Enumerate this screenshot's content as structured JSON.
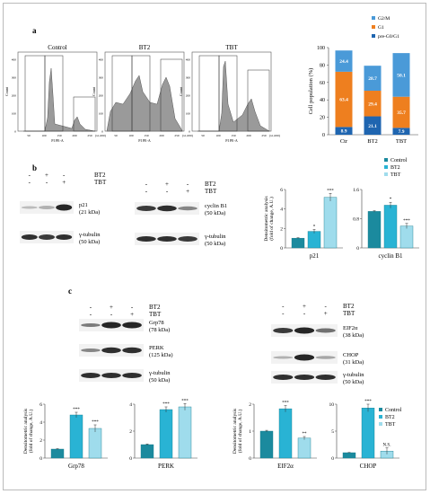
{
  "panels": {
    "a": {
      "label": "a",
      "flow": {
        "ylabel": "Count",
        "xlabel": "PI PE-A",
        "xunit": "(x1,000)",
        "xticks": [
          "50",
          "100",
          "150",
          "200",
          "250"
        ],
        "yticks": [
          "0",
          "100",
          "200",
          "300",
          "400"
        ],
        "plots": [
          {
            "title": "Control"
          },
          {
            "title": "BT2"
          },
          {
            "title": "TBT"
          }
        ]
      },
      "legend": [
        "G2/M",
        "G1",
        "pre-G0/G1"
      ],
      "colors": {
        "g2m": "#4a9ad8",
        "g1": "#ee7f1f",
        "preg": "#1f65b0"
      }
    },
    "b": {
      "label": "b",
      "treat_labels": [
        "BT2",
        "TBT"
      ],
      "blot1_signs": [
        [
          "-",
          "+",
          "-"
        ],
        [
          "-",
          "-",
          "+"
        ]
      ],
      "blot2_signs": [
        [
          "-",
          "+",
          "-"
        ],
        [
          "-",
          "-",
          "+"
        ]
      ],
      "blot1_bands": [
        {
          "name": "p21",
          "size": "(21 kDa)"
        },
        {
          "name": "γ-tubulin",
          "size": "(50 kDa)"
        }
      ],
      "blot2_bands": [
        {
          "name": "cyclin B1",
          "size": "(50 kDa)"
        },
        {
          "name": "γ-tubulin",
          "size": "(50 kDa)"
        }
      ],
      "ylabel_line1": "Densitometric analysis",
      "ylabel_line2": "(fold of change, A.U.)",
      "legend": [
        "Control",
        "BT2",
        "TBT"
      ]
    },
    "c": {
      "label": "c",
      "treat_labels": [
        "BT2",
        "TBT"
      ],
      "blot1_signs": [
        [
          "-",
          "+",
          "-"
        ],
        [
          "-",
          "-",
          "+"
        ]
      ],
      "blot2_signs": [
        [
          "-",
          "+",
          "-"
        ],
        [
          "-",
          "-",
          "+"
        ]
      ],
      "blot1_bands": [
        {
          "name": "Grp78",
          "size": "(78 kDa)"
        },
        {
          "name": "PERK",
          "size": "(125 kDa)"
        },
        {
          "name": "γ-tubulin",
          "size": "(50 kDa)"
        }
      ],
      "blot2_bands": [
        {
          "name": "EIF2α",
          "size": "(38 kDa)"
        },
        {
          "name": "CHOP",
          "size": "(31 kDa)"
        },
        {
          "name": "γ-tubulin",
          "size": "(50 kDa)"
        }
      ],
      "ylabel_line1": "Densitometric analysis",
      "ylabel_line2": "(fold of change, A.U.)",
      "legend": [
        "Control",
        "BT2",
        "TBT"
      ]
    }
  },
  "series_colors": [
    "#1b8a9e",
    "#29b3d4",
    "#9fdcec"
  ],
  "chart_data": [
    {
      "id": "cell_cycle",
      "type": "bar",
      "stacked": true,
      "ylabel": "Cell population (%)",
      "categories": [
        "Ctr",
        "BT2",
        "TBT"
      ],
      "ylim": [
        0,
        100
      ],
      "yticks": [
        "0",
        "20",
        "40",
        "60",
        "80",
        "100"
      ],
      "series": [
        {
          "name": "pre-G0/G1",
          "values": [
            8.9,
            21.1,
            7.9
          ],
          "labels": [
            "8.9",
            "21.1",
            "7.9"
          ]
        },
        {
          "name": "G1",
          "values": [
            63.4,
            29.4,
            35.7
          ],
          "labels": [
            "63.4",
            "29.4",
            "35.7"
          ]
        },
        {
          "name": "G2/M",
          "values": [
            24.4,
            28.7,
            50.1
          ],
          "labels": [
            "24.4",
            "28.7",
            "50.1"
          ]
        }
      ]
    },
    {
      "id": "p21",
      "type": "bar",
      "xlabel": "p21",
      "ylim": [
        0,
        6
      ],
      "yticks": [
        "0",
        "2",
        "4",
        "6"
      ],
      "values": [
        1.0,
        1.7,
        5.2
      ],
      "errors": [
        0.05,
        0.2,
        0.4
      ],
      "sig": [
        "",
        "*",
        "***"
      ]
    },
    {
      "id": "cyclinb1",
      "type": "bar",
      "xlabel": "cyclin B1",
      "ylim": [
        0,
        1.6
      ],
      "yticks": [
        "0",
        "0.8",
        "1.6"
      ],
      "values": [
        1.0,
        1.17,
        0.6
      ],
      "errors": [
        0.02,
        0.08,
        0.07
      ],
      "sig": [
        "",
        "*",
        "***"
      ]
    },
    {
      "id": "grp78",
      "type": "bar",
      "xlabel": "Grp78",
      "ylim": [
        0,
        6
      ],
      "yticks": [
        "0",
        "2",
        "4",
        "6"
      ],
      "values": [
        1.0,
        4.8,
        3.3
      ],
      "errors": [
        0.05,
        0.3,
        0.4
      ],
      "sig": [
        "",
        "***",
        "***"
      ]
    },
    {
      "id": "perk",
      "type": "bar",
      "xlabel": "PERK",
      "ylim": [
        0,
        4
      ],
      "yticks": [
        "0",
        "2",
        "4"
      ],
      "values": [
        1.0,
        3.6,
        3.8
      ],
      "errors": [
        0.05,
        0.2,
        0.25
      ],
      "sig": [
        "",
        "***",
        "***"
      ]
    },
    {
      "id": "eif2a",
      "type": "bar",
      "xlabel": "EIF2α",
      "ylim": [
        0,
        2
      ],
      "yticks": [
        "0",
        "1",
        "2"
      ],
      "values": [
        1.0,
        1.83,
        0.74
      ],
      "errors": [
        0.03,
        0.12,
        0.06
      ],
      "sig": [
        "",
        "***",
        "**"
      ]
    },
    {
      "id": "chop",
      "type": "bar",
      "xlabel": "CHOP",
      "ylim": [
        0,
        10
      ],
      "yticks": [
        "0",
        "5",
        "10"
      ],
      "values": [
        1.0,
        9.3,
        1.3
      ],
      "errors": [
        0.05,
        0.7,
        0.6
      ],
      "sig": [
        "",
        "***",
        "N.S."
      ]
    }
  ]
}
